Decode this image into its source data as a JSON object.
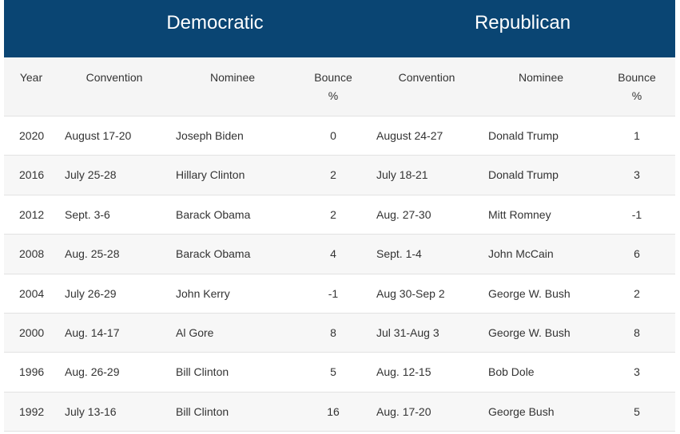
{
  "header": {
    "groups": [
      "Democratic",
      "Republican"
    ]
  },
  "table": {
    "columns": [
      "Year",
      "Convention",
      "Nominee",
      "Bounce %",
      "Convention",
      "Nominee",
      "Bounce %"
    ],
    "rows": [
      [
        2020,
        "August 17-20",
        "Joseph Biden",
        0,
        "August 24-27",
        "Donald Trump",
        1
      ],
      [
        2016,
        "July 25-28",
        "Hillary Clinton",
        2,
        "July 18-21",
        "Donald Trump",
        3
      ],
      [
        2012,
        "Sept. 3-6",
        "Barack Obama",
        2,
        "Aug. 27-30",
        "Mitt Romney",
        -1
      ],
      [
        2008,
        "Aug. 25-28",
        "Barack Obama",
        4,
        "Sept. 1-4",
        "John McCain",
        6
      ],
      [
        2004,
        "July 26-29",
        "John Kerry",
        -1,
        "Aug 30-Sep 2",
        "George W. Bush",
        2
      ],
      [
        2000,
        "Aug. 14-17",
        "Al Gore",
        8,
        "Jul 31-Aug 3",
        "George W. Bush",
        8
      ],
      [
        1996,
        "Aug. 26-29",
        "Bill Clinton",
        5,
        "Aug. 12-15",
        "Bob Dole",
        3
      ],
      [
        1992,
        "July 13-16",
        "Bill Clinton",
        16,
        "Aug. 17-20",
        "George Bush",
        5
      ]
    ]
  }
}
